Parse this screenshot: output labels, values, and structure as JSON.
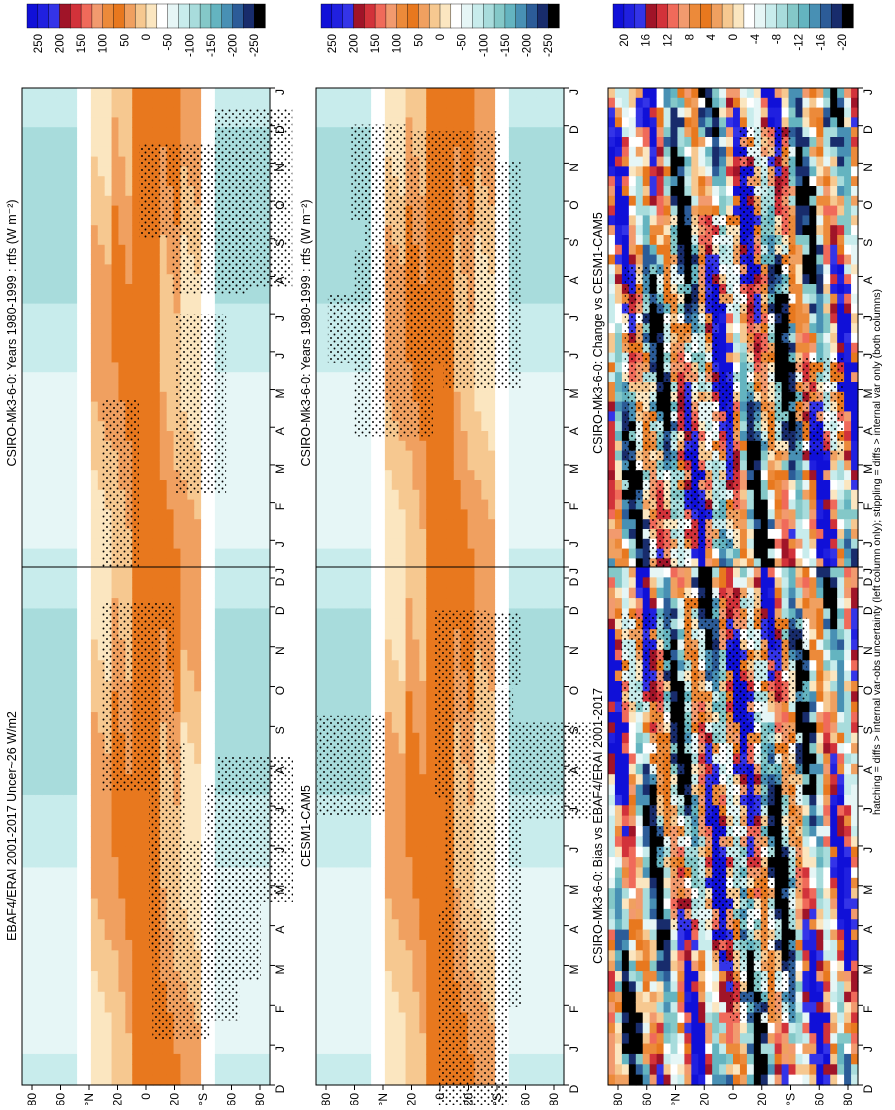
{
  "figure": {
    "caption": "hatching = diffs > internal var-obs uncertainty (left column only); stippling = diffs > internal var only (both columns)"
  },
  "chart_data": [
    {
      "type": "heatmap",
      "title": "CSIRO-Mk3-6-0: Years 1980-1999 : rtfs (W m⁻²)",
      "x_ticks": [
        "D",
        "J",
        "F",
        "M",
        "A",
        "M",
        "J",
        "J",
        "A",
        "S",
        "O",
        "N",
        "D",
        "J"
      ],
      "y_ticks": [
        "80",
        "60",
        "°N",
        "20",
        "0",
        "20",
        "°S",
        "60",
        "80"
      ],
      "colorbar_ticks": [
        "250",
        "200",
        "150",
        "100",
        "50",
        "0",
        "-50",
        "-100",
        "-150",
        "-200",
        "-250"
      ],
      "colorbar_colors": [
        "#1010d8",
        "#2020e0",
        "#3434e8",
        "#a01428",
        "#d2323a",
        "#f06a5a",
        "#f29a6e",
        "#ec8a3a",
        "#e8781e",
        "#f0a060",
        "#f6c890",
        "#fbe6c0",
        "#ffffff",
        "#e6f6f6",
        "#c8ecec",
        "#a8dcdc",
        "#84c8c8",
        "#64b4c0",
        "#4890b4",
        "#2c5c98",
        "#182c6c",
        "#000000"
      ],
      "mean_field": "orange tropical band (0 to 100 W m-2) between 40N and 40S, blue-green (-50 to -100 W m-2) at high latitudes"
    },
    {
      "type": "heatmap",
      "title": "CSIRO-Mk3-6-0: Years 1980-1999 : rtfs (W m⁻²)",
      "x_ticks": [
        "D",
        "J",
        "F",
        "M",
        "A",
        "M",
        "J",
        "J",
        "A",
        "S",
        "O",
        "N",
        "D",
        "J"
      ],
      "y_ticks": [
        "80",
        "60",
        "°N",
        "20",
        "0",
        "20",
        "°S",
        "60",
        "80"
      ],
      "colorbar_ticks": [
        "250",
        "200",
        "150",
        "100",
        "50",
        "0",
        "-50",
        "-100",
        "-150",
        "-200",
        "-250"
      ],
      "colorbar_colors": [
        "#1010d8",
        "#2020e0",
        "#3434e8",
        "#a01428",
        "#d2323a",
        "#f06a5a",
        "#f29a6e",
        "#ec8a3a",
        "#e8781e",
        "#f0a060",
        "#f6c890",
        "#fbe6c0",
        "#ffffff",
        "#e6f6f6",
        "#c8ecec",
        "#a8dcdc",
        "#84c8c8",
        "#64b4c0",
        "#4890b4",
        "#2c5c98",
        "#182c6c",
        "#000000"
      ]
    },
    {
      "type": "heatmap",
      "title": "EBAF4/ERAI 2001-2017 Uncer~26 W/m2",
      "x_ticks": [
        "D",
        "J",
        "F",
        "M",
        "A",
        "M",
        "J",
        "J",
        "A",
        "S",
        "O",
        "N",
        "D",
        "J"
      ],
      "y_ticks": [
        "80",
        "60",
        "°N",
        "20",
        "0",
        "20",
        "°S",
        "60",
        "80"
      ],
      "colorbar_ticks": [
        "250",
        "200",
        "150",
        "100",
        "50",
        "0",
        "-50",
        "-100",
        "-150",
        "-200",
        "-250"
      ],
      "colorbar_colors": [
        "#1010d8",
        "#2020e0",
        "#3434e8",
        "#a01428",
        "#d2323a",
        "#f06a5a",
        "#f29a6e",
        "#ec8a3a",
        "#e8781e",
        "#f0a060",
        "#f6c890",
        "#fbe6c0",
        "#ffffff",
        "#e6f6f6",
        "#c8ecec",
        "#a8dcdc",
        "#84c8c8",
        "#64b4c0",
        "#4890b4",
        "#2c5c98",
        "#182c6c",
        "#000000"
      ]
    },
    {
      "type": "heatmap",
      "title": "CESM1-CAM5",
      "x_ticks": [
        "D",
        "J",
        "F",
        "M",
        "A",
        "M",
        "J",
        "J",
        "A",
        "S",
        "O",
        "N",
        "D",
        "J"
      ],
      "y_ticks": [
        "80",
        "60",
        "°N",
        "20",
        "0",
        "20",
        "°S",
        "60",
        "80"
      ],
      "colorbar_ticks": [
        "250",
        "200",
        "150",
        "100",
        "50",
        "0",
        "-50",
        "-100",
        "-150",
        "-200",
        "-250"
      ],
      "colorbar_colors": [
        "#1010d8",
        "#2020e0",
        "#3434e8",
        "#a01428",
        "#d2323a",
        "#f06a5a",
        "#f29a6e",
        "#ec8a3a",
        "#e8781e",
        "#f0a060",
        "#f6c890",
        "#fbe6c0",
        "#ffffff",
        "#e6f6f6",
        "#c8ecec",
        "#a8dcdc",
        "#84c8c8",
        "#64b4c0",
        "#4890b4",
        "#2c5c98",
        "#182c6c",
        "#000000"
      ]
    },
    {
      "type": "heatmap",
      "title": "CSIRO-Mk3-6-0: Bias vs EBAF4/ERAI 2001-2017",
      "x_ticks": [
        "D",
        "J",
        "F",
        "M",
        "A",
        "M",
        "J",
        "J",
        "A",
        "S",
        "O",
        "N",
        "D",
        "J"
      ],
      "y_ticks": [
        "80",
        "60",
        "°N",
        "20",
        "0",
        "20",
        "°S",
        "60",
        "80"
      ],
      "colorbar_ticks": [
        "20",
        "16",
        "12",
        "8",
        "4",
        "0",
        "-4",
        "-8",
        "-12",
        "-16",
        "-20"
      ],
      "colorbar_colors": [
        "#1010d8",
        "#2020e0",
        "#3434e8",
        "#a01428",
        "#d2323a",
        "#f06a5a",
        "#f29a6e",
        "#ec8a3a",
        "#e8781e",
        "#f0a060",
        "#f6c890",
        "#fbe6c0",
        "#ffffff",
        "#e6f6f6",
        "#c8ecec",
        "#a8dcdc",
        "#84c8c8",
        "#64b4c0",
        "#4890b4",
        "#2c5c98",
        "#182c6c",
        "#000000"
      ]
    },
    {
      "type": "heatmap",
      "title": "CSIRO-Mk3-6-0: Change vs CESM1-CAM5",
      "x_ticks": [
        "D",
        "J",
        "F",
        "M",
        "A",
        "M",
        "J",
        "J",
        "A",
        "S",
        "O",
        "N",
        "D",
        "J"
      ],
      "y_ticks": [
        "80",
        "60",
        "°N",
        "20",
        "0",
        "20",
        "°S",
        "60",
        "80"
      ],
      "colorbar_ticks": [
        "20",
        "16",
        "12",
        "8",
        "4",
        "0",
        "-4",
        "-8",
        "-12",
        "-16",
        "-20"
      ],
      "colorbar_colors": [
        "#1010d8",
        "#2020e0",
        "#3434e8",
        "#a01428",
        "#d2323a",
        "#f06a5a",
        "#f29a6e",
        "#ec8a3a",
        "#e8781e",
        "#f0a060",
        "#f6c890",
        "#fbe6c0",
        "#ffffff",
        "#e6f6f6",
        "#c8ecec",
        "#a8dcdc",
        "#84c8c8",
        "#64b4c0",
        "#4890b4",
        "#2c5c98",
        "#182c6c",
        "#000000"
      ]
    }
  ]
}
